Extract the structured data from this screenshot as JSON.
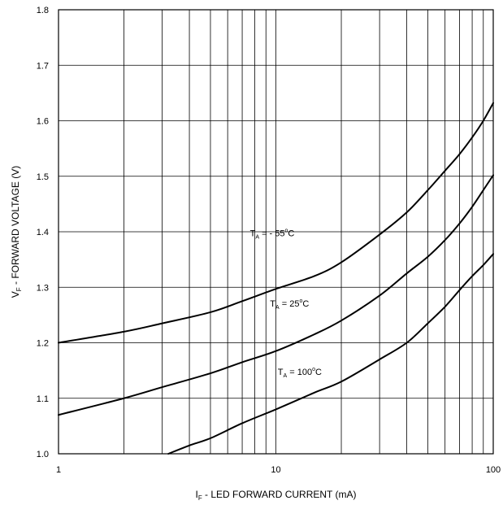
{
  "chart_data": {
    "type": "line",
    "x_scale": "log",
    "xlim": [
      1,
      100
    ],
    "ylim": [
      1.0,
      1.8
    ],
    "x_ticks": [
      "1",
      "10",
      "100"
    ],
    "y_ticks": [
      "1.0",
      "1.1",
      "1.2",
      "1.3",
      "1.4",
      "1.5",
      "1.6",
      "1.7",
      "1.8"
    ],
    "xlabel": {
      "main": "I",
      "sub": "F",
      "rest": " - LED FORWARD CURRENT (mA)"
    },
    "ylabel": {
      "main": "V",
      "sub": "F",
      "rest": " - FORWARD VOLTAGE (V)"
    },
    "grid": true,
    "series": [
      {
        "label": {
          "main": "T",
          "sub": "A",
          "value": " = - 55",
          "sup": "o",
          "unit": "C"
        },
        "x": [
          1,
          2,
          3,
          5,
          7,
          10,
          15,
          20,
          30,
          40,
          50,
          60,
          70,
          80,
          90,
          100
        ],
        "y": [
          1.2,
          1.22,
          1.235,
          1.255,
          1.275,
          1.297,
          1.32,
          1.345,
          1.395,
          1.435,
          1.475,
          1.51,
          1.54,
          1.57,
          1.6,
          1.632
        ]
      },
      {
        "label": {
          "main": "T",
          "sub": "A",
          "value": " = 25",
          "sup": "o",
          "unit": "C"
        },
        "x": [
          1,
          2,
          3,
          5,
          7,
          10,
          15,
          20,
          30,
          40,
          50,
          60,
          70,
          80,
          90,
          100
        ],
        "y": [
          1.07,
          1.1,
          1.12,
          1.145,
          1.165,
          1.185,
          1.215,
          1.24,
          1.285,
          1.325,
          1.355,
          1.385,
          1.415,
          1.445,
          1.475,
          1.502
        ]
      },
      {
        "label": {
          "main": "T",
          "sub": "A",
          "value": " = 100",
          "sup": "o",
          "unit": "C"
        },
        "x": [
          3.2,
          4,
          5,
          7,
          10,
          15,
          20,
          30,
          40,
          50,
          60,
          70,
          80,
          90,
          100
        ],
        "y": [
          1.0,
          1.015,
          1.028,
          1.055,
          1.08,
          1.11,
          1.13,
          1.17,
          1.2,
          1.235,
          1.265,
          1.295,
          1.32,
          1.34,
          1.36
        ]
      }
    ]
  }
}
